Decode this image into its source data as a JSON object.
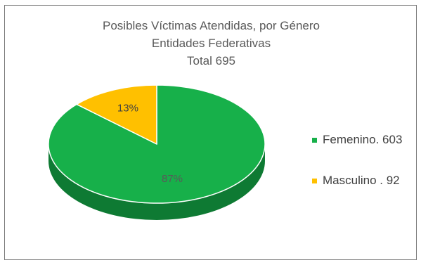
{
  "chart_data": {
    "type": "pie",
    "title_lines": [
      "Posibles Víctimas Atendidas, por Género",
      "Entidades Federativas",
      "Total 695"
    ],
    "slices": [
      {
        "label": "Femenino. 603",
        "value": 603,
        "percent_label": "87%",
        "color": "#17B04A",
        "side_color": "#0E7A33",
        "label_color": "#595959"
      },
      {
        "label": "Masculino . 92",
        "value": 92,
        "percent_label": "13%",
        "color": "#FFC000",
        "side_color": "#C79200",
        "label_color": "#404040"
      }
    ],
    "legend_position": "right"
  }
}
